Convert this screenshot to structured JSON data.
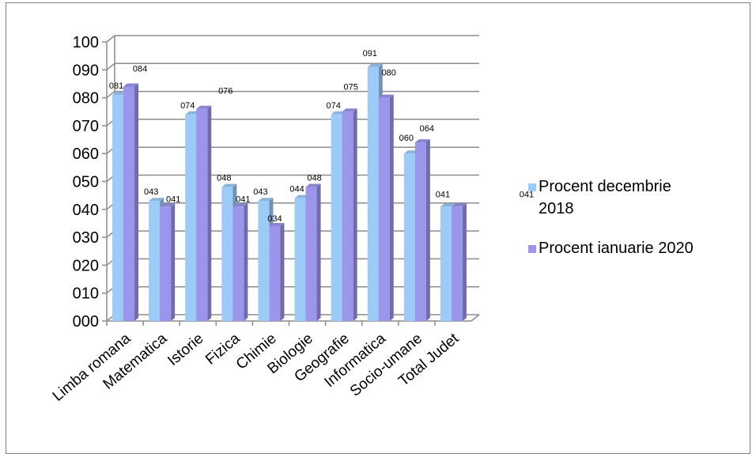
{
  "chart_data": {
    "type": "bar",
    "categories": [
      "Limba romana",
      "Matematica",
      "Istorie",
      "Fizica",
      "Chimie",
      "Biologie",
      "Geografie",
      "Informatica",
      "Socio-umane",
      "Total Judet"
    ],
    "y_tick_labels": [
      "000",
      "010",
      "020",
      "030",
      "040",
      "050",
      "060",
      "070",
      "080",
      "090",
      "100"
    ],
    "ylim": [
      0,
      100
    ],
    "grid": true,
    "legend_position": "right",
    "series": [
      {
        "name": "Procent decembrie 2018",
        "color": "#9dcbf7",
        "values": [
          81,
          43,
          74,
          48,
          43,
          44,
          74,
          91,
          60,
          41
        ],
        "labels": [
          "081",
          "043",
          "074",
          "048",
          "043",
          "044",
          "074",
          "091",
          "060",
          "041"
        ]
      },
      {
        "name": "Procent ianuarie 2020",
        "color": "#9b96ec",
        "values": [
          84,
          41,
          76,
          41,
          34,
          48,
          75,
          80,
          64,
          41
        ],
        "labels": [
          "084",
          "041",
          "076",
          "041",
          "034",
          "048",
          "075",
          "080",
          "064",
          "041"
        ]
      }
    ],
    "legend": {
      "entries": [
        {
          "line1": "Procent decembrie",
          "line2": "2018",
          "color": "#9dcbf7"
        },
        {
          "line1": "Procent ianuarie 2020",
          "line2": "",
          "color": "#9b96ec"
        }
      ]
    }
  }
}
